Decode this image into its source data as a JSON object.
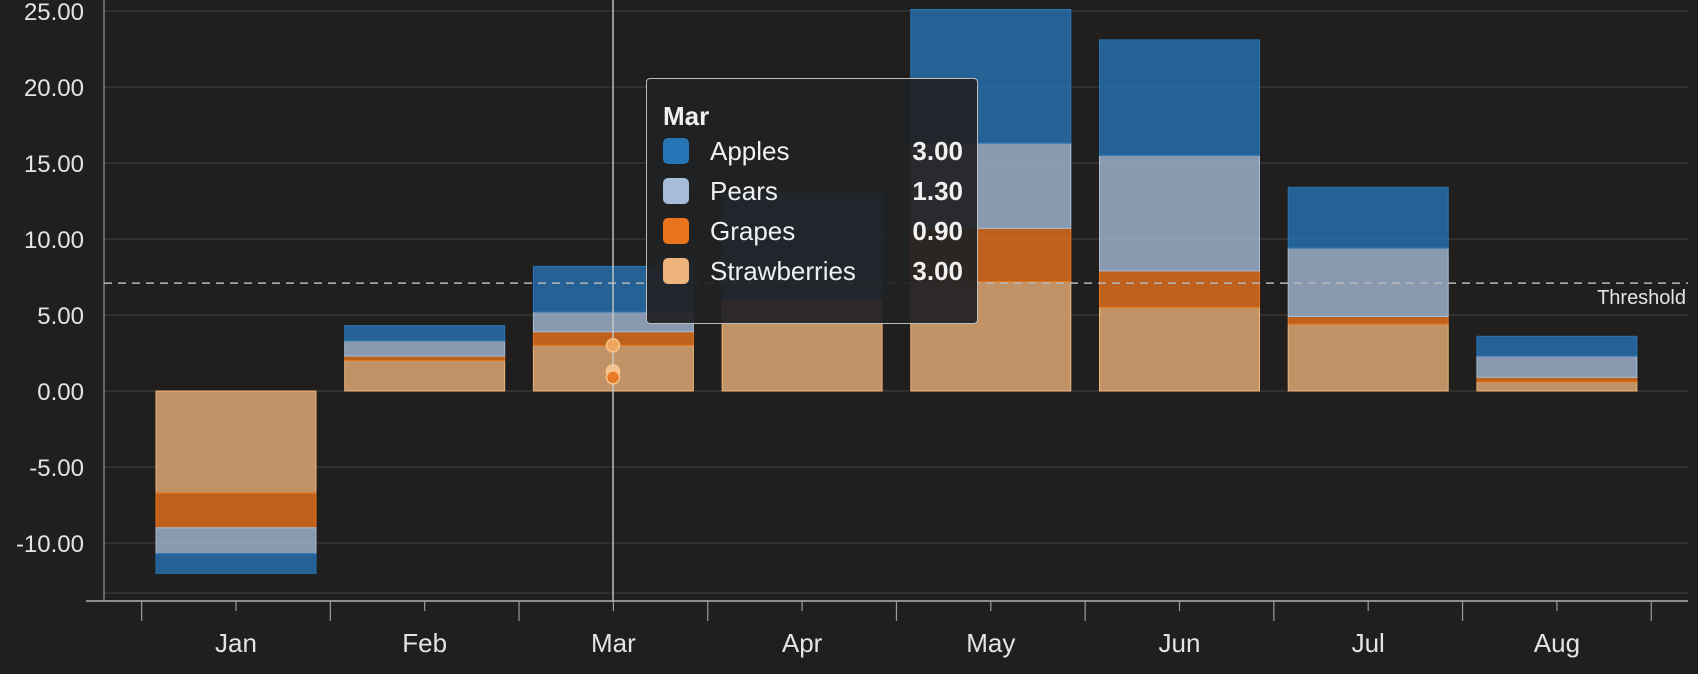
{
  "chart_data": {
    "type": "bar",
    "stacked": true,
    "categories": [
      "Jan",
      "Feb",
      "Mar",
      "Apr",
      "May",
      "Jun",
      "Jul",
      "Aug"
    ],
    "series": [
      {
        "name": "Strawberries",
        "color": "#edb47b",
        "values": [
          -6.7,
          2.0,
          3.0,
          6.0,
          7.2,
          5.5,
          4.4,
          0.6
        ]
      },
      {
        "name": "Grapes",
        "color": "#e9741c",
        "values": [
          -2.3,
          0.3,
          0.9,
          0,
          3.5,
          2.4,
          0.5,
          0.3
        ]
      },
      {
        "name": "Pears",
        "color": "#a6bcd8",
        "values": [
          -1.7,
          1.0,
          1.3,
          0,
          5.6,
          7.6,
          4.5,
          1.4
        ]
      },
      {
        "name": "Apples",
        "color": "#2775b6",
        "values": [
          -1.3,
          1.0,
          3.0,
          7.0,
          8.8,
          7.6,
          4.0,
          1.3
        ]
      }
    ],
    "y_ticks": [
      "25.00",
      "20.00",
      "15.00",
      "10.00",
      "5.00",
      "0.00",
      "-5.00",
      "-10.00"
    ],
    "y_tick_values": [
      25,
      20,
      15,
      10,
      5,
      0,
      -5,
      -10
    ],
    "ylim": [
      -13.8,
      25.7
    ],
    "threshold": {
      "value": 7.1,
      "label": "Threshold"
    },
    "crosshair_category": "Mar",
    "grid": true,
    "legend": "none"
  },
  "tooltip": {
    "title": "Mar",
    "rows": [
      {
        "name": "Apples",
        "value": "3.00",
        "color": "#2775b6"
      },
      {
        "name": "Pears",
        "value": "1.30",
        "color": "#a6bcd8"
      },
      {
        "name": "Grapes",
        "value": "0.90",
        "color": "#e9741c"
      },
      {
        "name": "Strawberries",
        "value": "3.00",
        "color": "#edb47b"
      }
    ]
  }
}
